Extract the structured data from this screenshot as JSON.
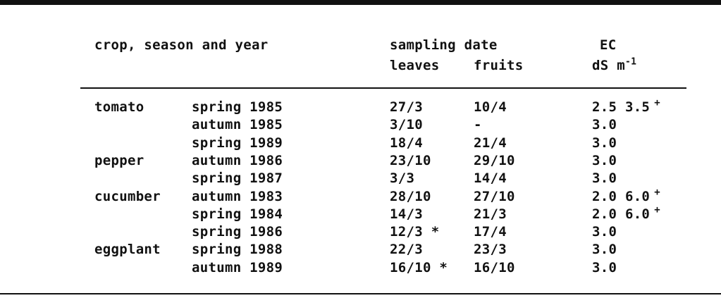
{
  "header": {
    "crop_col": "crop, season and year",
    "sampling_col": "sampling date",
    "leaves_col": "leaves",
    "fruits_col": "fruits",
    "ec_col": "EC",
    "ec_unit": "dS m",
    "ec_unit_exp": "-1"
  },
  "rows": [
    {
      "crop": "tomato",
      "season": "spring 1985",
      "leaves": "27/3",
      "fruits": "10/4",
      "ec": "2.5 3.5",
      "ec_mark": "+"
    },
    {
      "crop": "",
      "season": "autumn 1985",
      "leaves": "3/10",
      "fruits": "-",
      "ec": "3.0",
      "ec_mark": ""
    },
    {
      "crop": "",
      "season": "spring 1989",
      "leaves": "18/4",
      "fruits": "21/4",
      "ec": "3.0",
      "ec_mark": ""
    },
    {
      "crop": "pepper",
      "season": "autumn 1986",
      "leaves": "23/10",
      "fruits": "29/10",
      "ec": "3.0",
      "ec_mark": ""
    },
    {
      "crop": "",
      "season": "spring 1987",
      "leaves": "3/3",
      "fruits": "14/4",
      "ec": "3.0",
      "ec_mark": ""
    },
    {
      "crop": "cucumber",
      "season": "autumn 1983",
      "leaves": "28/10",
      "fruits": "27/10",
      "ec": "2.0 6.0",
      "ec_mark": "+"
    },
    {
      "crop": "",
      "season": "spring 1984",
      "leaves": "14/3",
      "fruits": "21/3",
      "ec": "2.0 6.0",
      "ec_mark": "+"
    },
    {
      "crop": "",
      "season": "spring 1986",
      "leaves": "12/3 *",
      "fruits": "17/4",
      "ec": "3.0",
      "ec_mark": ""
    },
    {
      "crop": "eggplant",
      "season": "spring 1988",
      "leaves": "22/3",
      "fruits": "23/3",
      "ec": "3.0",
      "ec_mark": ""
    },
    {
      "crop": "",
      "season": "autumn 1989",
      "leaves": "16/10 *",
      "fruits": "16/10",
      "ec": "3.0",
      "ec_mark": ""
    }
  ]
}
